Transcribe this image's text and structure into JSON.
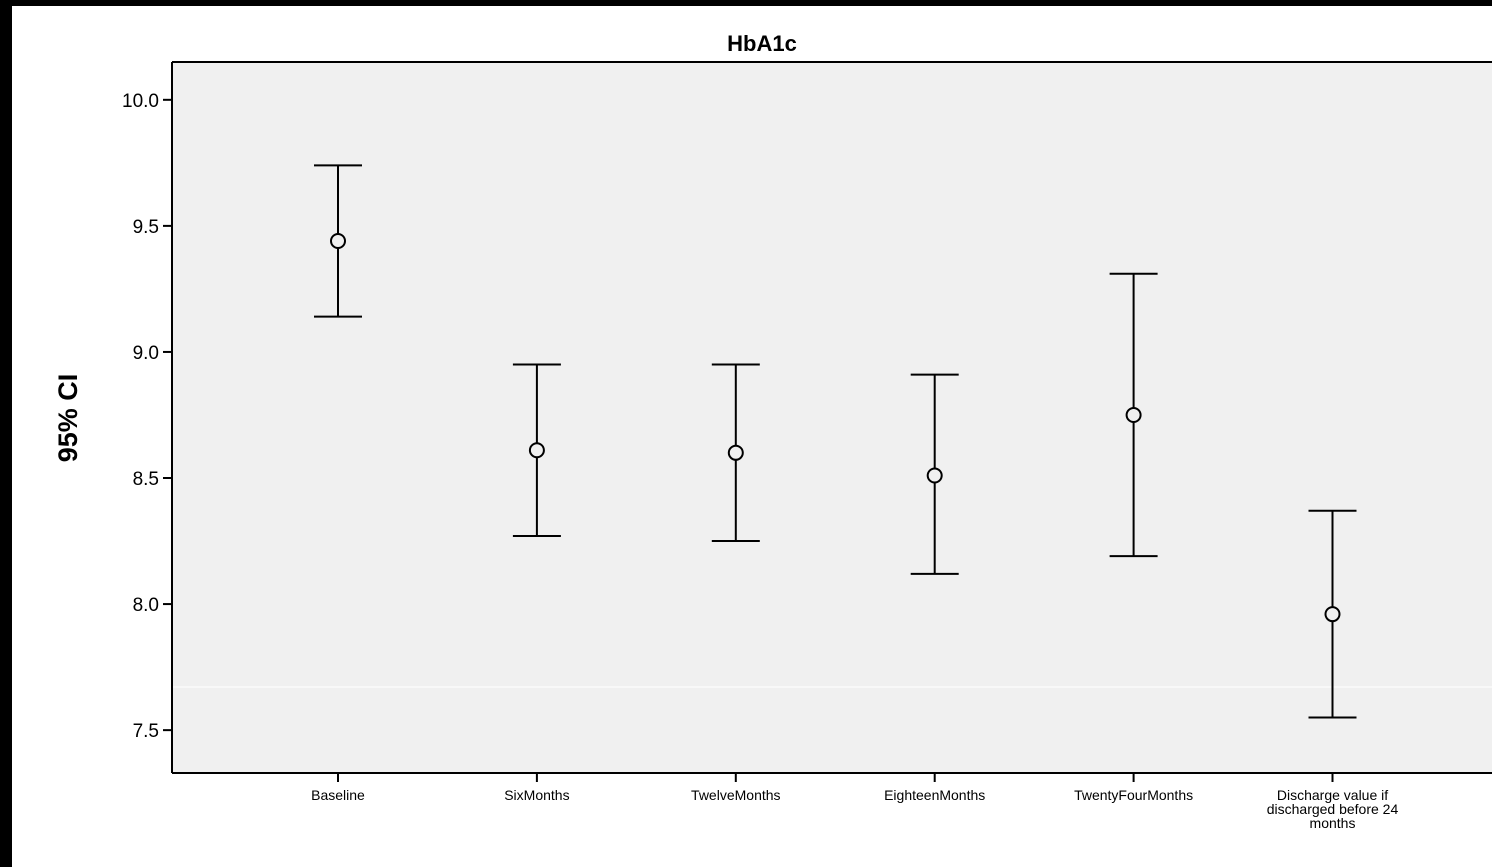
{
  "chart_data": {
    "type": "errorbar",
    "title": "HbA1c",
    "xlabel": "",
    "ylabel": "95% CI",
    "ylim": [
      7.33,
      10.15
    ],
    "yticks": [
      "7.5",
      "8.0",
      "8.5",
      "9.0",
      "9.5",
      "10.0"
    ],
    "grid": false,
    "categories": [
      [
        "Baseline"
      ],
      [
        "SixMonths"
      ],
      [
        "TwelveMonths"
      ],
      [
        "EighteenMonths"
      ],
      [
        "TwentyFourMonths"
      ],
      [
        "Discharge value if",
        "discharged before 24",
        "months"
      ]
    ],
    "mean": [
      9.44,
      8.61,
      8.6,
      8.51,
      8.75,
      7.96
    ],
    "lower": [
      9.14,
      8.27,
      8.25,
      8.12,
      8.19,
      7.55
    ],
    "upper": [
      9.74,
      8.95,
      8.95,
      8.91,
      9.31,
      8.37
    ],
    "colors": {
      "background": "#000000",
      "plot_area": "#f0f0f0",
      "marks": "#000000"
    }
  }
}
